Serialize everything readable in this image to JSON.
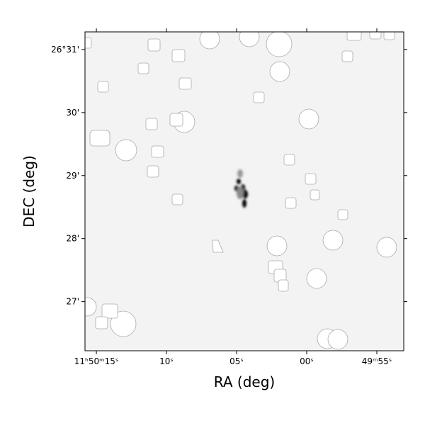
{
  "chart_data": {
    "type": "image",
    "xlabel": "RA (deg)",
    "ylabel": "DEC (deg)",
    "xlim": [
      15.81,
      -6.92
    ],
    "xticks": [
      {
        "value": 15,
        "label": "11ʰ50ᵐ15ˢ"
      },
      {
        "value": 10,
        "label": "10ˢ"
      },
      {
        "value": 5,
        "label": "05ˢ"
      },
      {
        "value": 0,
        "label": "00ˢ"
      },
      {
        "value": -5,
        "label": "49ᵐ55ˢ"
      }
    ],
    "ylim": [
      26.22,
      31.28
    ],
    "yticks": [
      {
        "value": 31,
        "label": "26°31'"
      },
      {
        "value": 30,
        "label": "30'"
      },
      {
        "value": 29,
        "label": "29'"
      },
      {
        "value": 28,
        "label": "28'"
      },
      {
        "value": 27,
        "label": "27'"
      }
    ]
  }
}
